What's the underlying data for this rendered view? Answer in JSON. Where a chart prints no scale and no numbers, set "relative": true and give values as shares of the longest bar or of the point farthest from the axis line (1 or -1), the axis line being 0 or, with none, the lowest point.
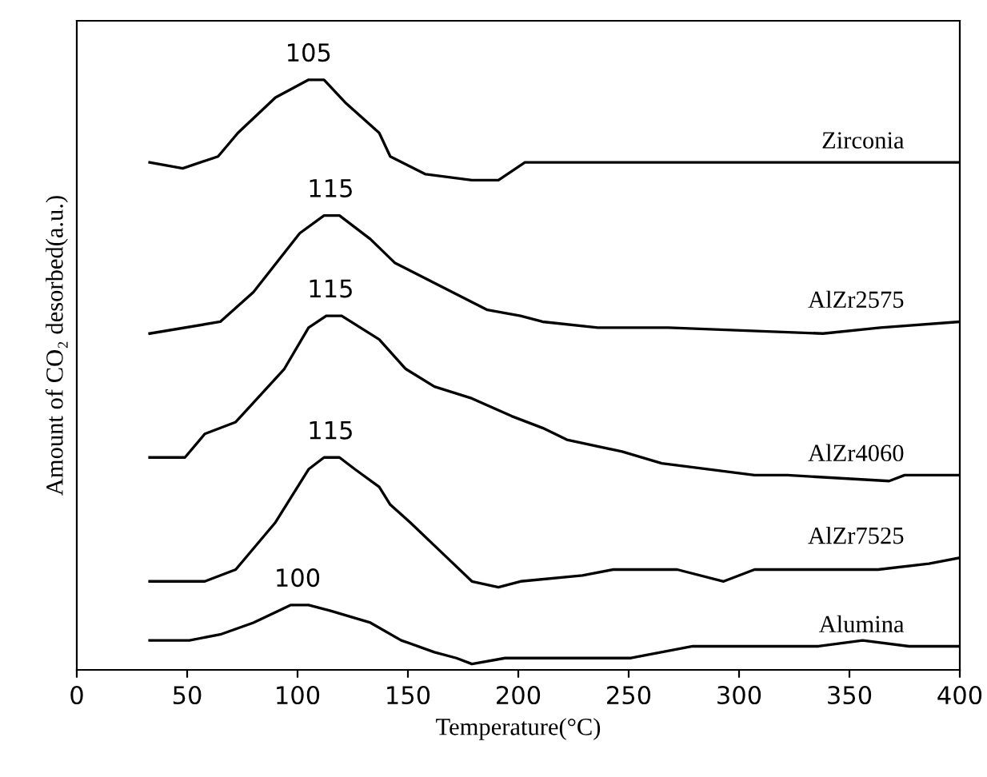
{
  "chart_data": {
    "type": "line",
    "relative": true,
    "xlabel": "Temperature(°C)",
    "ylabel": "Amount of CO₂ desorbed(a.u.)",
    "xlim": [
      0,
      400
    ],
    "xticks": [
      0,
      50,
      100,
      150,
      200,
      250,
      300,
      350,
      400
    ],
    "tick_labels": "x",
    "grid": false,
    "legend": false,
    "marker": "none",
    "line_style": "solid",
    "series": [
      {
        "name": "Zirconia",
        "color": "#000000",
        "x": [
          33,
          48,
          64,
          73,
          90,
          105,
          112,
          122,
          137,
          142,
          158,
          179,
          191,
          203,
          211,
          222,
          257,
          322,
          363,
          400
        ],
        "values": [
          0.86,
          0.85,
          0.87,
          0.91,
          0.97,
          1.0,
          1.0,
          0.96,
          0.91,
          0.87,
          0.84,
          0.83,
          0.83,
          0.86,
          0.86,
          0.86,
          0.86,
          0.86,
          0.86,
          0.86
        ]
      },
      {
        "name": "AlZr2575",
        "color": "#000000",
        "x": [
          33,
          65,
          80,
          101,
          112,
          119,
          133,
          144,
          165,
          186,
          201,
          211,
          236,
          268,
          338,
          364,
          400
        ],
        "values": [
          0.57,
          0.59,
          0.64,
          0.74,
          0.77,
          0.77,
          0.73,
          0.69,
          0.65,
          0.61,
          0.6,
          0.59,
          0.58,
          0.58,
          0.57,
          0.58,
          0.59
        ]
      },
      {
        "name": "AlZr4060",
        "color": "#000000",
        "x": [
          33,
          49,
          58,
          72,
          94,
          105,
          113,
          120,
          137,
          149,
          162,
          179,
          197,
          211,
          222,
          247,
          265,
          307,
          322,
          368,
          375,
          400
        ],
        "values": [
          0.36,
          0.36,
          0.4,
          0.42,
          0.51,
          0.58,
          0.6,
          0.6,
          0.56,
          0.51,
          0.48,
          0.46,
          0.43,
          0.41,
          0.39,
          0.37,
          0.35,
          0.33,
          0.33,
          0.32,
          0.33,
          0.33
        ]
      },
      {
        "name": "AlZr7525",
        "color": "#000000",
        "x": [
          33,
          58,
          72,
          90,
          105,
          112,
          119,
          126,
          137,
          142,
          151,
          165,
          179,
          191,
          201,
          229,
          243,
          272,
          293,
          307,
          322,
          363,
          386,
          400
        ],
        "values": [
          0.15,
          0.15,
          0.17,
          0.25,
          0.34,
          0.36,
          0.36,
          0.34,
          0.31,
          0.28,
          0.25,
          0.2,
          0.15,
          0.14,
          0.15,
          0.16,
          0.17,
          0.17,
          0.15,
          0.17,
          0.17,
          0.17,
          0.18,
          0.19
        ]
      },
      {
        "name": "Alumina",
        "color": "#000000",
        "x": [
          33,
          51,
          65,
          80,
          97,
          105,
          115,
          133,
          147,
          162,
          172,
          179,
          194,
          229,
          251,
          279,
          307,
          336,
          356,
          377,
          400
        ],
        "values": [
          0.05,
          0.05,
          0.06,
          0.08,
          0.11,
          0.11,
          0.1,
          0.08,
          0.05,
          0.03,
          0.02,
          0.01,
          0.02,
          0.02,
          0.02,
          0.04,
          0.04,
          0.04,
          0.05,
          0.04,
          0.04
        ]
      }
    ],
    "annotations": [
      {
        "text": "105",
        "x": 105,
        "y": 1.0
      },
      {
        "text": "115",
        "x": 115,
        "y": 0.77
      },
      {
        "text": "115",
        "x": 115,
        "y": 0.6
      },
      {
        "text": "115",
        "x": 115,
        "y": 0.36
      },
      {
        "text": "100",
        "x": 100,
        "y": 0.11
      }
    ]
  }
}
